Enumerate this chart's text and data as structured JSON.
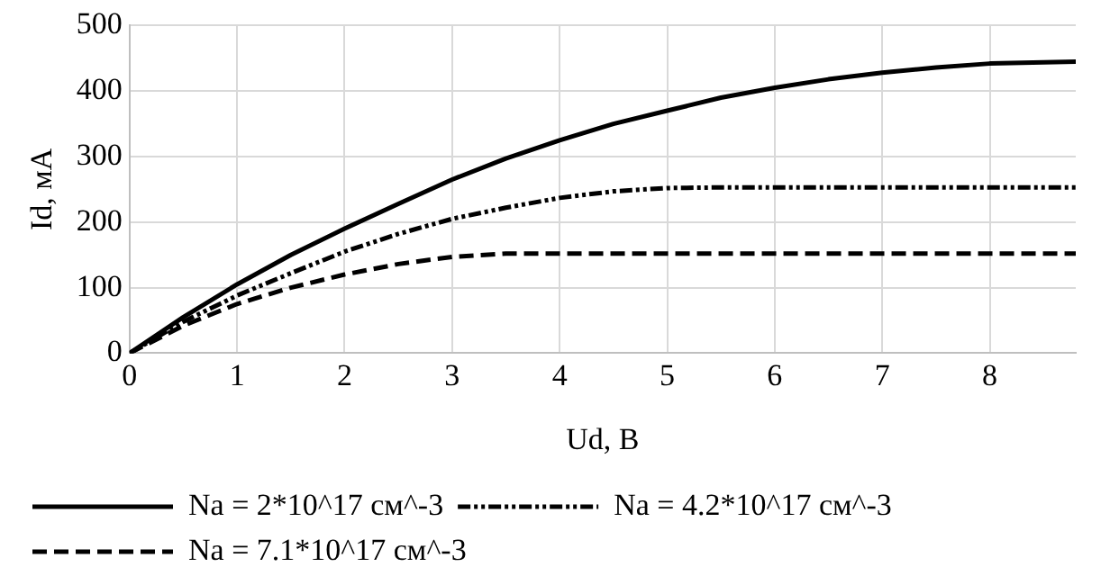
{
  "chart_data": {
    "type": "line",
    "xlabel": "Ud, B",
    "ylabel": "Id, мА",
    "xlim": [
      0,
      8.8
    ],
    "xticks": [
      0,
      1,
      2,
      3,
      4,
      5,
      6,
      7,
      8
    ],
    "ylim": [
      0,
      500
    ],
    "yticks": [
      0,
      100,
      200,
      300,
      400,
      500
    ],
    "grid": true,
    "legend": "bottom",
    "marker": "none",
    "series": [
      {
        "name": "Na = 2*10^17 см^-3",
        "color": "#000000",
        "line_style": "solid",
        "x": [
          0,
          0.5,
          1,
          1.5,
          2,
          2.5,
          3,
          3.5,
          4,
          4.5,
          5,
          5.5,
          6,
          6.5,
          7,
          7.5,
          8,
          8.5,
          8.8
        ],
        "values": [
          0,
          55,
          105,
          150,
          190,
          228,
          265,
          297,
          325,
          350,
          370,
          390,
          405,
          418,
          428,
          436,
          442,
          444,
          445
        ]
      },
      {
        "name": "Na = 4.2*10^17 см^-3",
        "color": "#000000",
        "line_style": "dotted",
        "x": [
          0,
          0.5,
          1,
          1.5,
          2,
          2.5,
          3,
          3.5,
          4,
          4.5,
          5,
          5.5,
          6,
          7,
          8,
          8.8
        ],
        "values": [
          0,
          48,
          88,
          122,
          155,
          182,
          205,
          222,
          237,
          247,
          252,
          253,
          253,
          253,
          253,
          253
        ]
      },
      {
        "name": "Na = 7.1*10^17 см^-3",
        "color": "#000000",
        "line_style": "dashed",
        "x": [
          0,
          0.5,
          1,
          1.5,
          2,
          2.5,
          3,
          3.5,
          4,
          5,
          6,
          7,
          8,
          8.8
        ],
        "values": [
          0,
          42,
          75,
          100,
          120,
          136,
          147,
          152,
          152,
          152,
          152,
          152,
          152,
          152
        ]
      }
    ]
  }
}
